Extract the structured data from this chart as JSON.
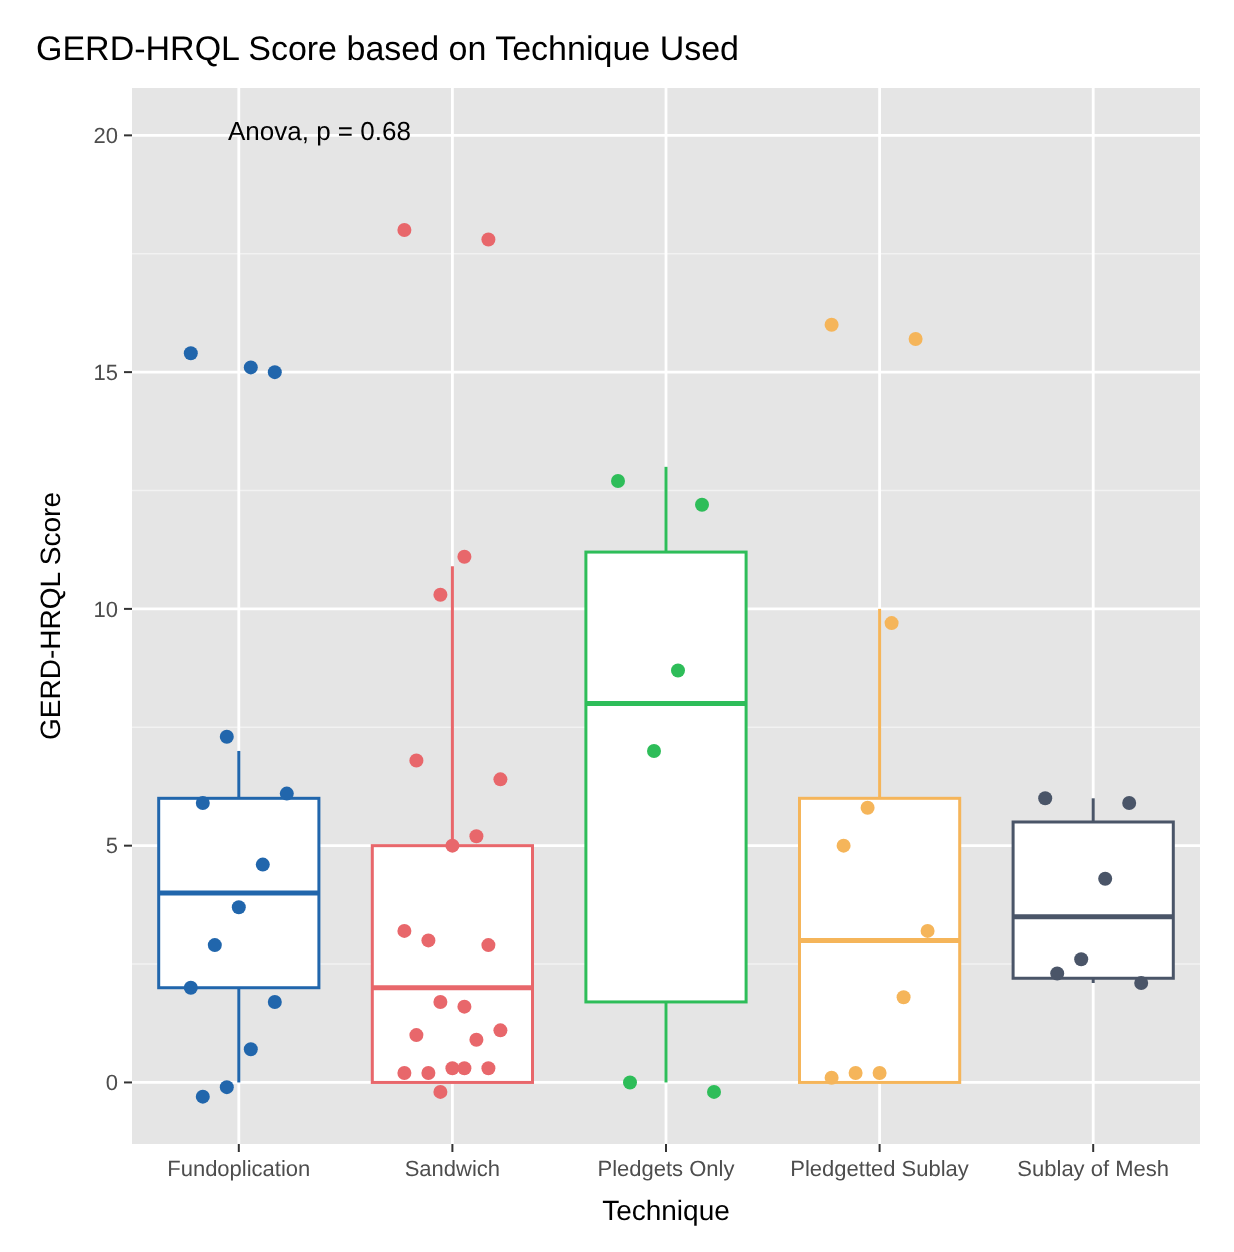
{
  "chart_data": {
    "type": "box",
    "title": "GERD-HRQL Score based on Technique Used",
    "xlabel": "Technique",
    "ylabel": "GERD-HRQL Score",
    "annotations": [
      "Anova, p = 0.68"
    ],
    "categories": [
      "Fundoplication",
      "Sandwich",
      "Pledgets Only",
      "Pledgetted Sublay",
      "Sublay of Mesh"
    ],
    "colors": [
      "#2166ac",
      "#e8676b",
      "#2ebd59",
      "#f5b55a",
      "#4a5568"
    ],
    "boxes": [
      {
        "low": 0,
        "q1": 2,
        "median": 4,
        "q3": 6,
        "high": 7
      },
      {
        "low": 0,
        "q1": 0,
        "median": 2,
        "q3": 5,
        "high": 10.9
      },
      {
        "low": 0,
        "q1": 1.7,
        "median": 8,
        "q3": 11.2,
        "high": 13
      },
      {
        "low": 0,
        "q1": 0,
        "median": 3,
        "q3": 6,
        "high": 10
      },
      {
        "low": 2.1,
        "q1": 2.2,
        "median": 3.5,
        "q3": 5.5,
        "high": 6
      }
    ],
    "ylim": [
      -1.3,
      21
    ],
    "yticks": [
      0,
      5,
      10,
      15,
      20
    ],
    "grid": true,
    "series": [
      {
        "type": "scatter",
        "color": "#2166ac",
        "x": [
          "Fundoplication",
          "Fundoplication",
          "Fundoplication",
          "Fundoplication",
          "Fundoplication",
          "Fundoplication",
          "Fundoplication",
          "Fundoplication",
          "Fundoplication",
          "Fundoplication",
          "Fundoplication",
          "Fundoplication",
          "Fundoplication",
          "Fundoplication"
        ],
        "values": [
          15.4,
          15,
          15.1,
          7.3,
          5.9,
          6.1,
          4.6,
          3.7,
          2.9,
          2,
          1.7,
          0.7,
          -0.1,
          -0.3
        ]
      },
      {
        "type": "scatter",
        "color": "#e8676b",
        "x": [
          "Sandwich",
          "Sandwich",
          "Sandwich",
          "Sandwich",
          "Sandwich",
          "Sandwich",
          "Sandwich",
          "Sandwich",
          "Sandwich",
          "Sandwich",
          "Sandwich",
          "Sandwich",
          "Sandwich",
          "Sandwich",
          "Sandwich",
          "Sandwich",
          "Sandwich",
          "Sandwich",
          "Sandwich",
          "Sandwich",
          "Sandwich",
          "Sandwich"
        ],
        "values": [
          18,
          17.8,
          11.1,
          10.3,
          6.8,
          6.4,
          5.2,
          5,
          3,
          3.2,
          2.9,
          1.6,
          1.7,
          1,
          1.1,
          0.9,
          0.3,
          0.2,
          0.2,
          0.3,
          0.3,
          -0.2
        ]
      },
      {
        "type": "scatter",
        "color": "#2ebd59",
        "x": [
          "Pledgets Only",
          "Pledgets Only",
          "Pledgets Only",
          "Pledgets Only",
          "Pledgets Only",
          "Pledgets Only"
        ],
        "values": [
          12.7,
          12.2,
          8.7,
          7,
          0,
          -0.2
        ]
      },
      {
        "type": "scatter",
        "color": "#f5b55a",
        "x": [
          "Pledgetted Sublay",
          "Pledgetted Sublay",
          "Pledgetted Sublay",
          "Pledgetted Sublay",
          "Pledgetted Sublay",
          "Pledgetted Sublay",
          "Pledgetted Sublay",
          "Pledgetted Sublay",
          "Pledgetted Sublay",
          "Pledgetted Sublay"
        ],
        "values": [
          16,
          15.7,
          9.7,
          5.8,
          5,
          3.2,
          1.8,
          0.2,
          0.2,
          0.1
        ]
      },
      {
        "type": "scatter",
        "color": "#4a5568",
        "x": [
          "Sublay of Mesh",
          "Sublay of Mesh",
          "Sublay of Mesh",
          "Sublay of Mesh",
          "Sublay of Mesh",
          "Sublay of Mesh"
        ],
        "values": [
          6,
          5.9,
          4.3,
          2.6,
          2.3,
          2.1
        ]
      }
    ]
  }
}
